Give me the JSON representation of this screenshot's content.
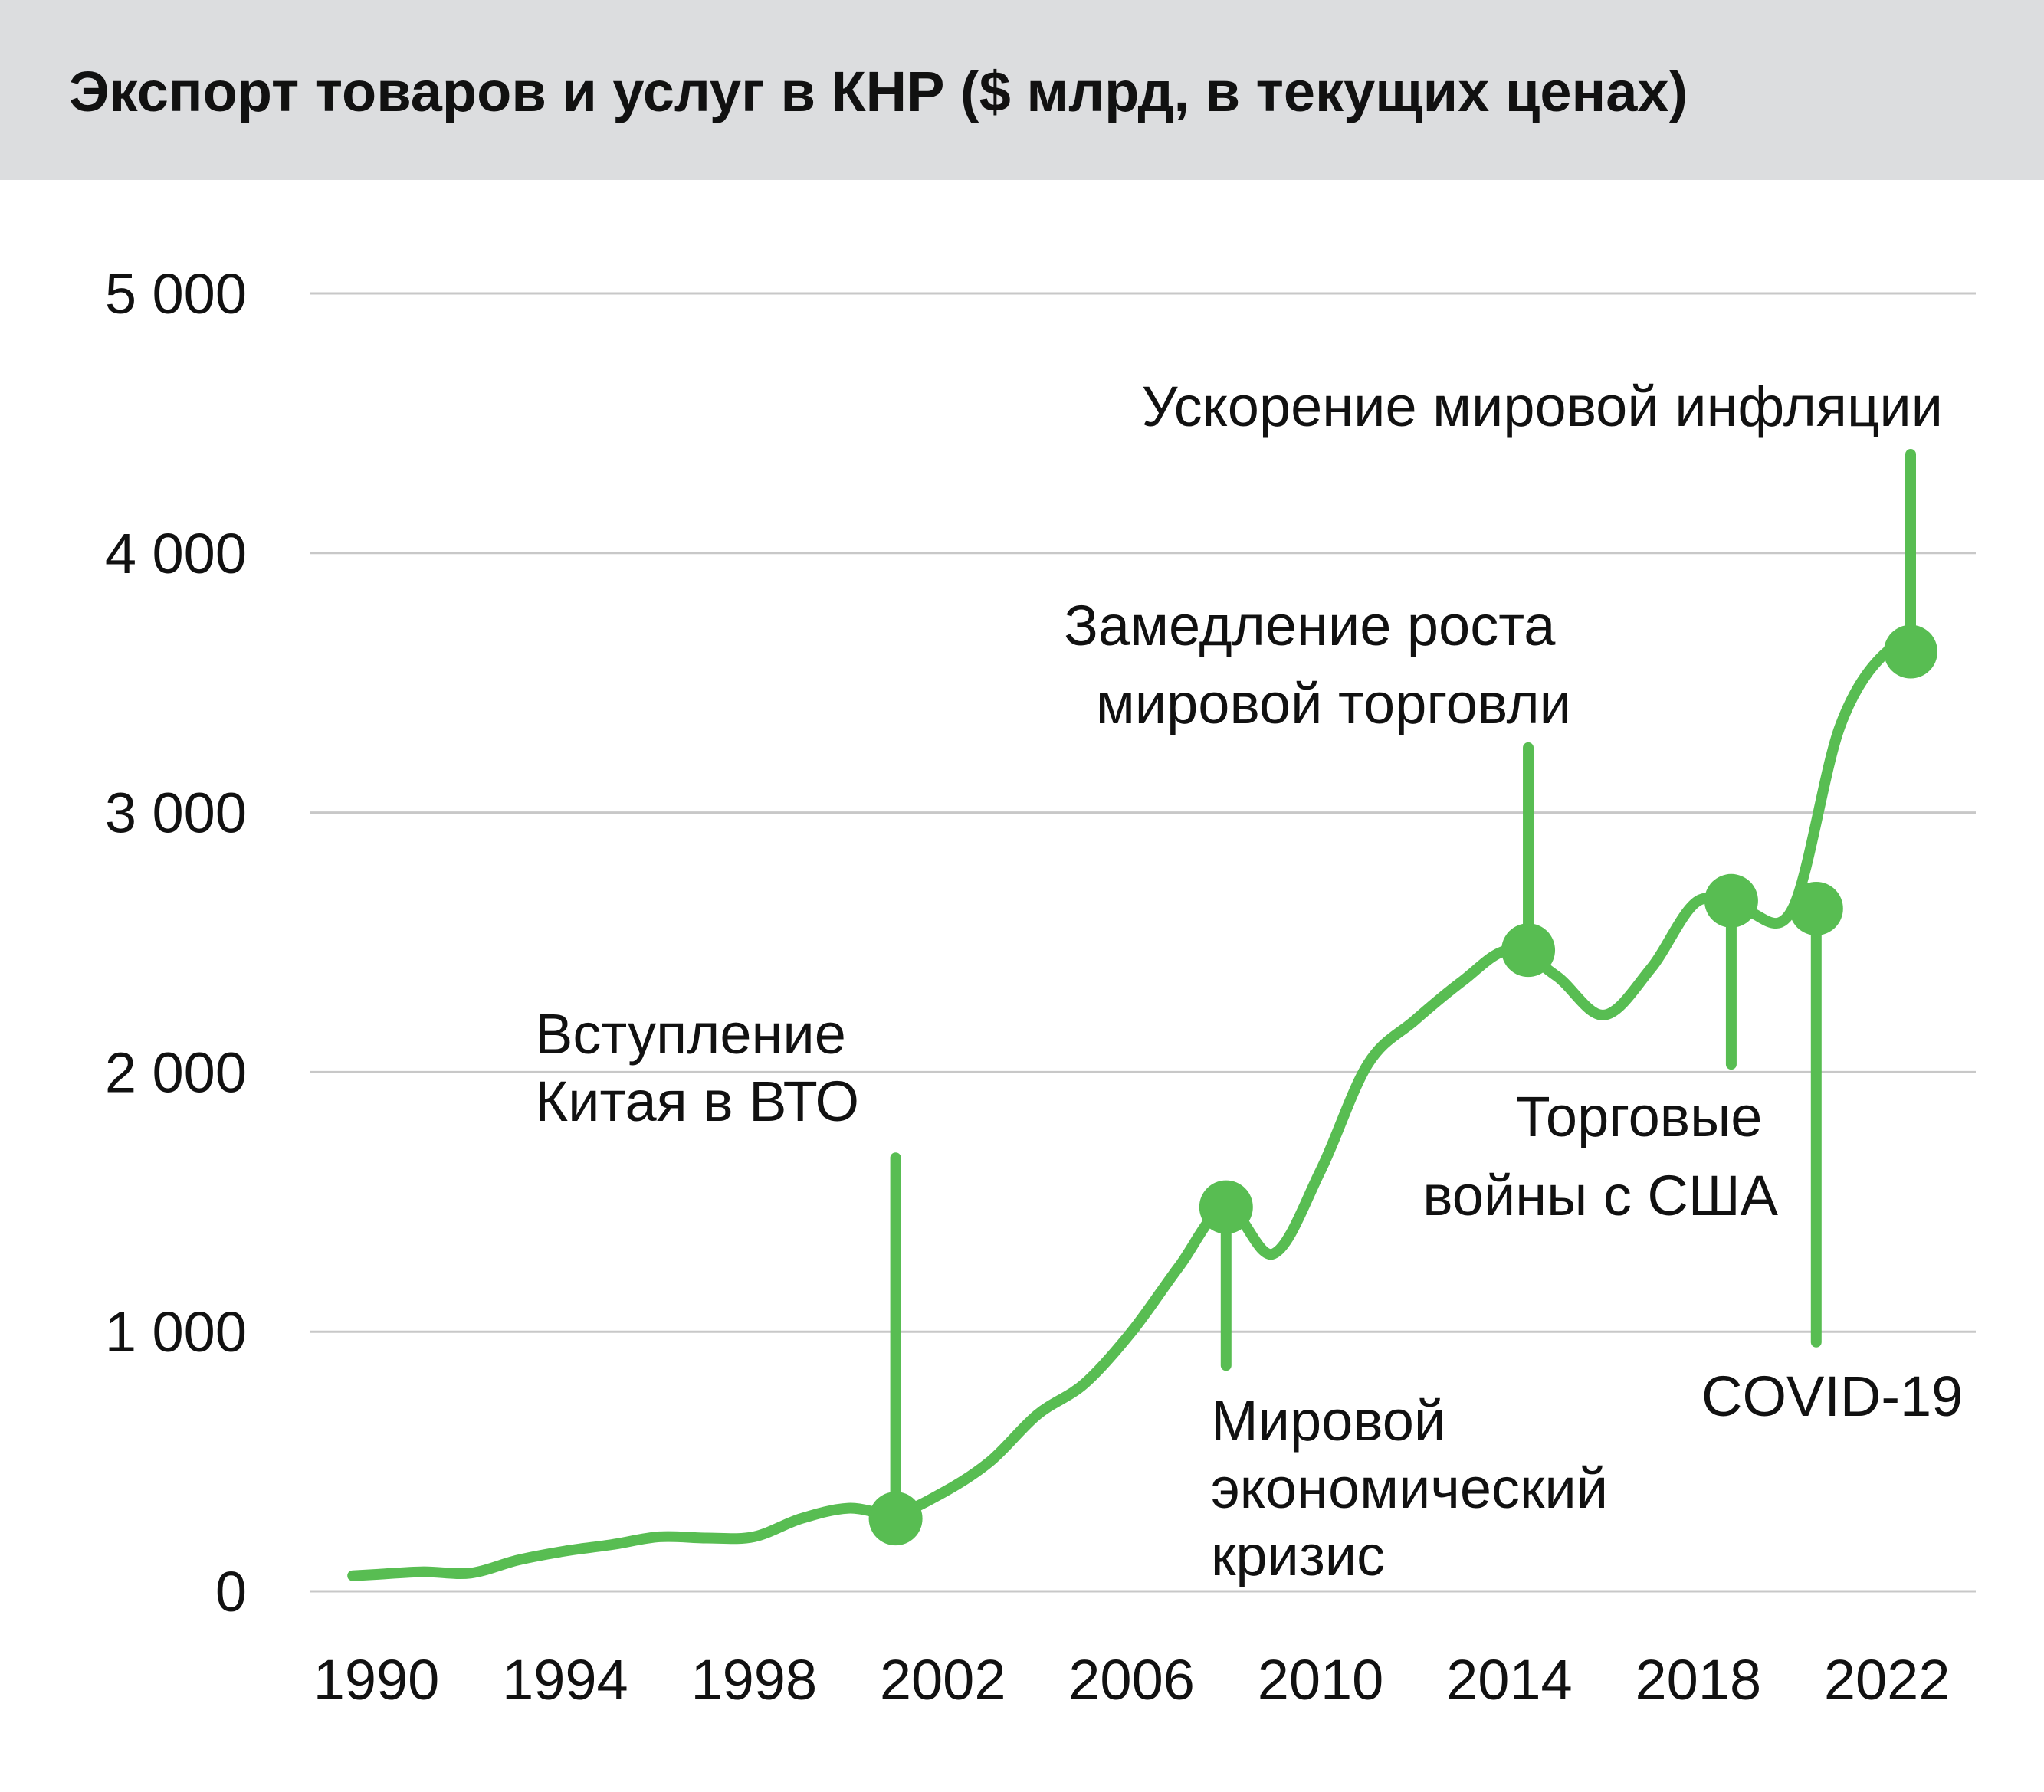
{
  "title": "Экспорт товаров и услуг в КНР ($ млрд, в текущих ценах)",
  "colors": {
    "line": "#58bd52",
    "grid": "#c8c8c8",
    "header_bg": "#dcdddf",
    "text": "#111111"
  },
  "chart_data": {
    "type": "line",
    "title": "Экспорт товаров и услуг в КНР ($ млрд, в текущих ценах)",
    "xlabel": "",
    "ylabel": "",
    "xlim": [
      1989,
      2023.6
    ],
    "ylim": [
      0,
      5000
    ],
    "grid": true,
    "y_ticks": [
      0,
      1000,
      2000,
      3000,
      4000,
      5000
    ],
    "y_tick_labels": [
      "0",
      "1 000",
      "2 000",
      "3 000",
      "4 000",
      "5 000"
    ],
    "x_ticks": [
      1990,
      1994,
      1998,
      2002,
      2006,
      2010,
      2014,
      2018,
      2022
    ],
    "x_tick_labels": [
      "1990",
      "1994",
      "1998",
      "2002",
      "2006",
      "2010",
      "2014",
      "2018",
      "2022"
    ],
    "series": [
      {
        "x": [
          1989.5,
          1990,
          1991,
          1992,
          1993,
          1994,
          1995,
          1996,
          1997,
          1998,
          1999,
          2000,
          2001,
          2002,
          2003,
          2004,
          2005,
          2006,
          2007,
          2008,
          2009,
          2010,
          2011,
          2012,
          2013,
          2014,
          2015,
          2016,
          2017,
          2018,
          2019,
          2020,
          2021,
          2022,
          2022.7
        ],
        "y": [
          60,
          65,
          75,
          70,
          120,
          155,
          180,
          210,
          205,
          210,
          280,
          320,
          300,
          380,
          500,
          680,
          800,
          1000,
          1250,
          1480,
          1300,
          1620,
          2030,
          2200,
          2350,
          2470,
          2370,
          2220,
          2400,
          2660,
          2620,
          2630,
          3330,
          3620,
          3600
        ]
      }
    ],
    "annotations": [
      {
        "lines": [
          "Вступление",
          "Китая в ВТО"
        ],
        "x": 2001.0,
        "y": 280,
        "stem_to": 1670
      },
      {
        "lines": [
          "Мировой",
          "экономический",
          "кризис"
        ],
        "x": 2008.0,
        "y": 1480,
        "stem_to": 870
      },
      {
        "lines": [
          "Замедление роста",
          "мировой торговли"
        ],
        "x": 2014.4,
        "y": 2470,
        "stem_to": 3250
      },
      {
        "lines": [
          "Торговые",
          "войны с США"
        ],
        "x": 2018.7,
        "y": 2660,
        "stem_to": 2030
      },
      {
        "lines": [
          "COVID-19"
        ],
        "x": 2020.5,
        "y": 2630,
        "stem_to": 960
      },
      {
        "lines": [
          "Ускорение мировой инфляции"
        ],
        "x": 2022.5,
        "y": 3620,
        "stem_to": 4380
      }
    ]
  }
}
